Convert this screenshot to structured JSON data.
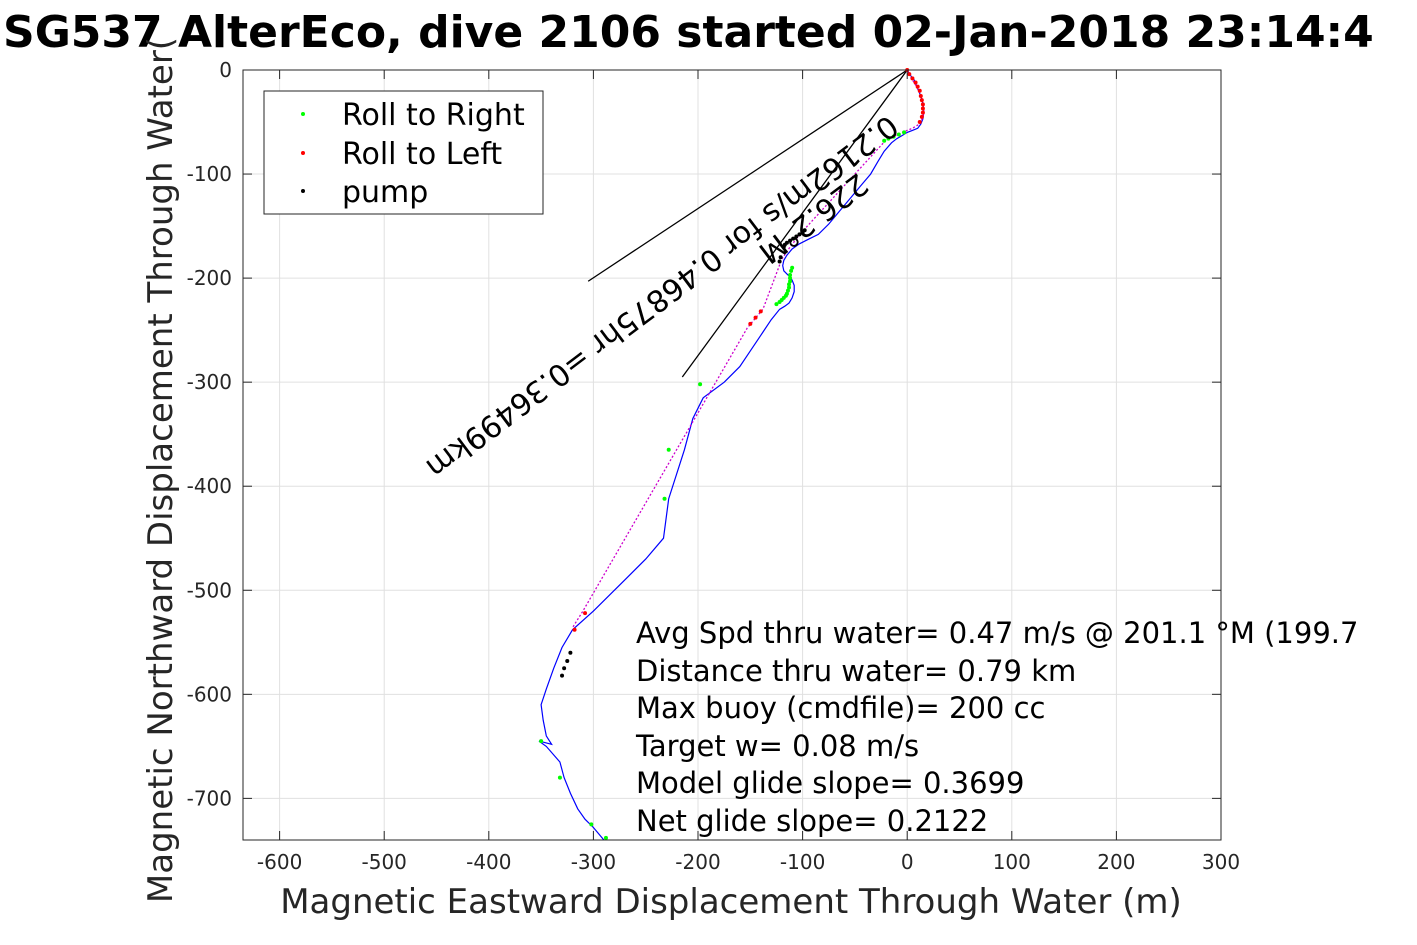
{
  "chart_data": {
    "type": "scatter",
    "title": "SG537 AlterEco, dive 2106 started 02-Jan-2018 23:14:4",
    "xlabel": "Magnetic Eastward Displacement Through Water (m)",
    "ylabel": "Magnetic Northward Displacement Through Water(",
    "xlim": [
      -635,
      300
    ],
    "ylim": [
      -740,
      0
    ],
    "xticks": [
      -600,
      -500,
      -400,
      -300,
      -200,
      -100,
      0,
      100,
      200,
      300
    ],
    "xtick_labels": [
      "-600",
      "-500",
      "-400",
      "-300",
      "-200",
      "-100",
      "0",
      "100",
      "200",
      "300"
    ],
    "yticks": [
      0,
      -100,
      -200,
      -300,
      -400,
      -500,
      -600,
      -700
    ],
    "ytick_labels": [
      "0",
      "-100",
      "-200",
      "-300",
      "-400",
      "-500",
      "-600",
      "-700"
    ],
    "grid": true,
    "legend_position": "top-left",
    "track_color": "#0000ff",
    "track": {
      "x": [
        0,
        3,
        7,
        10,
        13,
        15,
        16,
        15,
        13,
        10,
        5,
        0,
        -5,
        -10,
        -15,
        -22,
        -28,
        -35,
        -45,
        -55,
        -65,
        -75,
        -85,
        -95,
        -103,
        -110,
        -115,
        -118,
        -119,
        -118,
        -115,
        -112,
        -110,
        -108,
        -108,
        -110,
        -113,
        -117,
        -122,
        -130,
        -140,
        -150,
        -160,
        -175,
        -195,
        -205,
        -213,
        -228,
        -233,
        -250,
        -270,
        -300,
        -320,
        -330,
        -338,
        -345,
        -350,
        -348,
        -345,
        -340,
        -352,
        -345,
        -332,
        -328,
        -322,
        -315,
        -308,
        -300,
        -290
      ],
      "y": [
        0,
        -5,
        -10,
        -18,
        -25,
        -32,
        -40,
        -47,
        -52,
        -56,
        -58,
        -60,
        -63,
        -66,
        -70,
        -78,
        -88,
        -100,
        -112,
        -124,
        -136,
        -148,
        -158,
        -163,
        -167,
        -172,
        -178,
        -183,
        -188,
        -193,
        -196,
        -199,
        -202,
        -207,
        -213,
        -219,
        -224,
        -227,
        -230,
        -240,
        -255,
        -270,
        -285,
        -300,
        -315,
        -335,
        -365,
        -412,
        -450,
        -470,
        -490,
        -520,
        -538,
        -555,
        -575,
        -595,
        -610,
        -625,
        -640,
        -648,
        -645,
        -650,
        -665,
        -680,
        -695,
        -710,
        -720,
        -728,
        -740
      ]
    },
    "series": [
      {
        "name": "Roll to Right",
        "color": "#00ff00",
        "x": [
          -3,
          -8,
          -13,
          -18,
          -22,
          -110,
          -111,
          -112,
          -112,
          -112,
          -113,
          -113,
          -114,
          -115,
          -116,
          -118,
          -120,
          -122,
          -125,
          -198,
          -228,
          -232,
          -350,
          -332,
          -302,
          -288
        ],
        "y": [
          -60,
          -62,
          -64,
          -66,
          -68,
          -190,
          -193,
          -197,
          -200,
          -203,
          -206,
          -209,
          -212,
          -215,
          -217,
          -219,
          -221,
          -223,
          -225,
          -302,
          -365,
          -412,
          -645,
          -680,
          -725,
          -738
        ]
      },
      {
        "name": "Roll to Left",
        "color": "#ff0000",
        "x": [
          0,
          2,
          5,
          8,
          10,
          12,
          13,
          14,
          15,
          15,
          15,
          14,
          12,
          -140,
          -145,
          -150,
          -308,
          -318
        ],
        "y": [
          0,
          -4,
          -8,
          -12,
          -16,
          -20,
          -25,
          -29,
          -33,
          -37,
          -41,
          -45,
          -50,
          -232,
          -238,
          -244,
          -522,
          -538
        ]
      },
      {
        "name": "pump",
        "color": "#000000",
        "x": [
          -118,
          -117,
          -115,
          -112,
          -109,
          -106,
          -103,
          -100,
          -98,
          -121,
          -122,
          -322,
          -325,
          -328,
          -330
        ],
        "y": [
          -170,
          -168,
          -166,
          -164,
          -162,
          -160,
          -158,
          -156,
          -154,
          -180,
          -184,
          -560,
          -568,
          -575,
          -582
        ]
      }
    ],
    "magenta_overlay": {
      "color": "#cc00cc",
      "x": [
        0,
        4,
        9,
        13,
        15,
        16,
        15,
        13,
        10,
        5,
        0,
        -7,
        -14,
        -20,
        -100,
        -104,
        -108,
        -112,
        -116,
        -120,
        -138,
        -143,
        -148,
        -153,
        -310,
        -315,
        -320
      ],
      "y": [
        0,
        -8,
        -16,
        -25,
        -33,
        -40,
        -45,
        -50,
        -53,
        -56,
        -58,
        -61,
        -64,
        -67,
        -155,
        -160,
        -165,
        -170,
        -176,
        -182,
        -230,
        -236,
        -242,
        -248,
        -520,
        -528,
        -536
      ]
    },
    "wedge_lines": [
      {
        "x": [
          0,
          -305
        ],
        "y": [
          0,
          -203
        ]
      },
      {
        "x": [
          0,
          -215
        ],
        "y": [
          0,
          -295
        ]
      }
    ],
    "annotations": {
      "rotated": [
        "226.2°M",
        "0.2162m/s for 0.46875hr =0.36499km"
      ],
      "stats": [
        "Avg Spd thru water=  0.47 m/s @ 201.1 °M (199.7",
        "Distance thru water=  0.79 km",
        "Max buoy (cmdfile)= 200 cc",
        "Target w= 0.08 m/s",
        "Model glide slope= 0.3699",
        "Net glide slope= 0.2122"
      ]
    }
  }
}
